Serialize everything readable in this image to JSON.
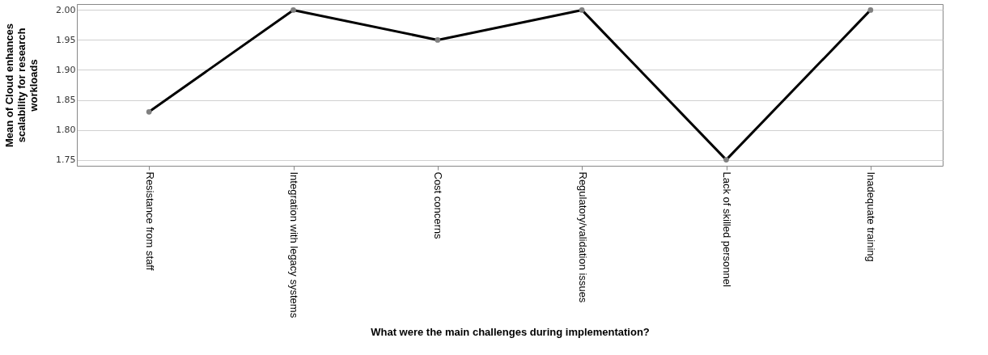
{
  "chart_data": {
    "type": "line",
    "xlabel": "What were the main challenges during implementation?",
    "ylabel": "Mean of Cloud enhances scalability for research workloads",
    "categories": [
      "Resistance from staff",
      "Integration with legacy systems",
      "Cost concerns",
      "Regulatory/validation issues",
      "Lack of skilled personnel",
      "Inadequate training"
    ],
    "series": [
      {
        "color": "#000000",
        "values": [
          1.83,
          2.0,
          1.95,
          2.0,
          1.75,
          2.0
        ]
      }
    ],
    "ylim": [
      1.74,
      2.01
    ],
    "yticks": [
      1.75,
      {
        "value": 1.8,
        "label": "1.80"
      },
      1.85,
      {
        "value": 1.9,
        "label": "1.90"
      },
      1.95,
      {
        "value": 2,
        "label": "2.00"
      }
    ],
    "grid": "y",
    "marker": "circle",
    "line_style": "solid"
  }
}
